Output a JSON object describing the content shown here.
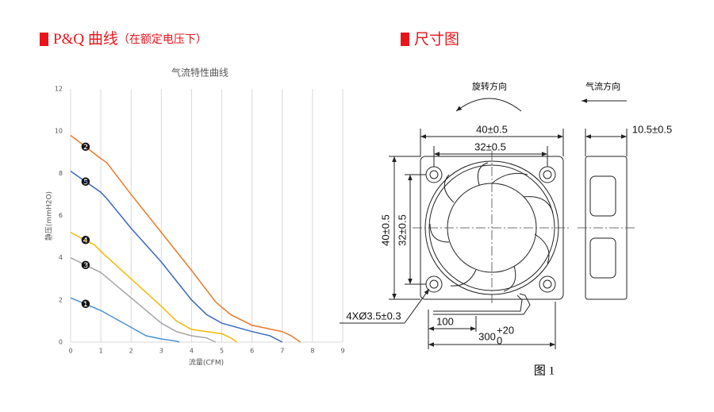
{
  "header_left": {
    "title": "P&Q 曲线",
    "subtitle": "（在额定电压下）"
  },
  "chart_data": {
    "type": "line",
    "title": "气流特性曲线",
    "x_label": "流量(CFM)",
    "y_label": "静压(mmH2O)",
    "xlim": [
      0,
      9
    ],
    "ylim": [
      0,
      12
    ],
    "xticks": [
      0,
      1,
      2,
      3,
      4,
      5,
      6,
      7,
      8,
      9
    ],
    "yticks": [
      0,
      2,
      4,
      6,
      8,
      10,
      12
    ],
    "grid": "x",
    "series": [
      {
        "name": "❶",
        "color": "#4a8fd6",
        "x": [
          0,
          1,
          2,
          2.5,
          3,
          3.5,
          3.6
        ],
        "values": [
          2.1,
          1.5,
          0.7,
          0.3,
          0.15,
          0.05,
          0
        ]
      },
      {
        "name": "❷",
        "color": "#ea7a2e",
        "x": [
          0,
          1,
          1.2,
          2,
          3,
          4,
          4.8,
          5.3,
          6,
          7,
          7.3,
          7.6
        ],
        "values": [
          9.8,
          8.7,
          8.5,
          7.0,
          5.2,
          3.4,
          1.9,
          1.3,
          0.8,
          0.5,
          0.3,
          0
        ]
      },
      {
        "name": "❸",
        "color": "#a5a5a5",
        "x": [
          0,
          1,
          2,
          3,
          3.5,
          4,
          4.5,
          4.8
        ],
        "values": [
          4.0,
          3.3,
          2.1,
          0.9,
          0.5,
          0.3,
          0.2,
          0
        ]
      },
      {
        "name": "❹",
        "color": "#f5b800",
        "x": [
          0,
          0.8,
          1,
          2,
          3,
          3.5,
          4,
          4.5,
          5,
          5.3,
          5.5
        ],
        "values": [
          5.2,
          4.6,
          4.3,
          3.0,
          1.7,
          1.0,
          0.6,
          0.5,
          0.4,
          0.2,
          0
        ]
      },
      {
        "name": "❺",
        "color": "#3a68bf",
        "x": [
          0,
          1,
          1.2,
          2,
          3,
          4,
          4.5,
          5,
          6,
          6.6,
          7
        ],
        "values": [
          8.1,
          7.1,
          6.8,
          5.4,
          3.8,
          2.0,
          1.3,
          0.9,
          0.5,
          0.3,
          0
        ]
      }
    ]
  },
  "header_right": {
    "title": "尺寸图"
  },
  "diagram": {
    "rotation": "旋转方向",
    "airflow": "气流方向",
    "width_outer": "40±0.5",
    "width_inner": "32±0.5",
    "thickness": "10.5±0.5",
    "height_outer": "40±0.5",
    "height_inner": "32±0.5",
    "holes": "4XØ3.5±0.3",
    "lead_strip": "100",
    "lead_length": "300",
    "lead_tol_upper": "+20",
    "lead_tol_lower": "0"
  },
  "caption": "图 1"
}
